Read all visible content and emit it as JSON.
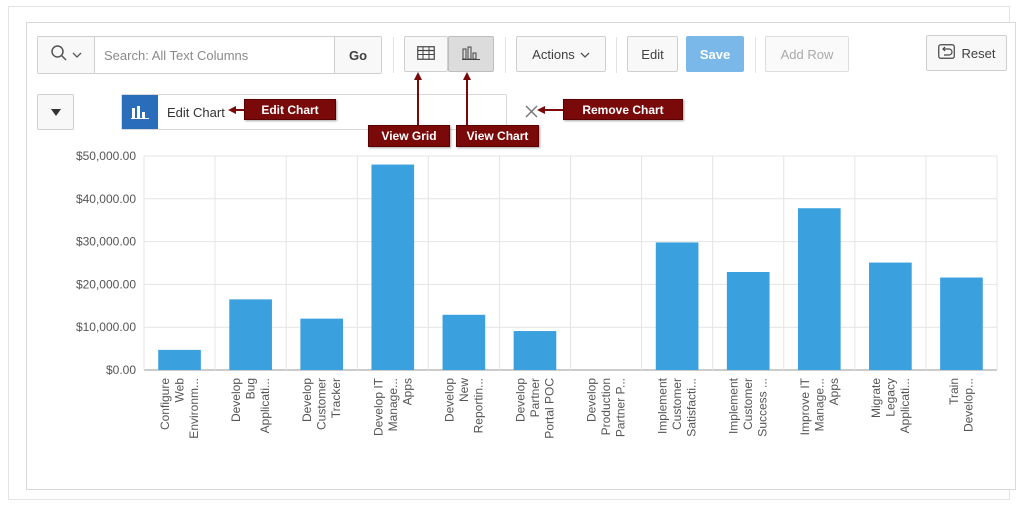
{
  "toolbar": {
    "search_placeholder": "Search: All Text Columns",
    "go_label": "Go",
    "actions_label": "Actions",
    "edit_label": "Edit",
    "save_label": "Save",
    "add_row_label": "Add Row",
    "reset_label": "Reset"
  },
  "chart_bar": {
    "edit_chart_label": "Edit Chart"
  },
  "callouts": {
    "edit_chart": "Edit Chart",
    "view_grid": "View Grid",
    "view_chart": "View Chart",
    "remove_chart": "Remove Chart"
  },
  "colors": {
    "bar": "#3aa0de",
    "save_bg": "#7ab8ea",
    "callout_bg": "#7a0a0a",
    "chart_icon_bg": "#2a6ebb"
  },
  "icons": {
    "search": "search-icon",
    "grid": "grid-icon",
    "chart": "bar-chart-icon",
    "reset": "reset-icon",
    "remove": "close-icon",
    "collapse": "triangle-down-icon"
  },
  "chart_data": {
    "type": "bar",
    "categories": [
      [
        "Configure",
        "Web",
        "Environm..."
      ],
      [
        "Develop",
        "Bug",
        "Applicati..."
      ],
      [
        "Develop",
        "Customer",
        "Tracker"
      ],
      [
        "Develop IT",
        "Manage...",
        "Apps"
      ],
      [
        "Develop",
        "New",
        "Reportin..."
      ],
      [
        "Develop",
        "Partner",
        "Portal POC"
      ],
      [
        "Develop",
        "Production",
        "Partner P..."
      ],
      [
        "Implement",
        "Customer",
        "Satisfacti..."
      ],
      [
        "Implement",
        "Customer",
        "Success ..."
      ],
      [
        "Improve IT",
        "Manage...",
        "Apps"
      ],
      [
        "Migrate",
        "Legacy",
        "Applicati..."
      ],
      [
        "Train",
        "Develop..."
      ]
    ],
    "values": [
      4700,
      16500,
      12000,
      48000,
      12900,
      9100,
      0,
      29800,
      22900,
      37800,
      25100,
      21600
    ],
    "ylim": [
      0,
      50000
    ],
    "yticks": [
      "$0.00",
      "$10,000.00",
      "$20,000.00",
      "$30,000.00",
      "$40,000.00",
      "$50,000.00"
    ],
    "grid": true
  }
}
